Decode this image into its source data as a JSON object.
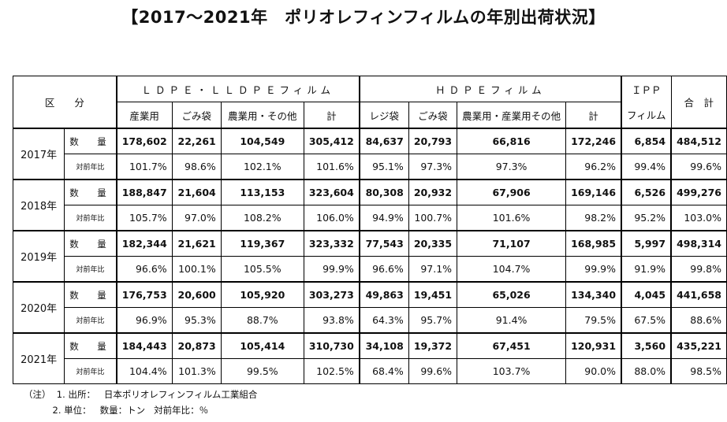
{
  "title": "【2017～2021年　ポリオレフィンフィルムの年別出荷状況】",
  "header": {
    "kubun": "区　　分",
    "ldpe": "ＬＤＰＥ・ＬＬＤＰＥフィルム",
    "hdpe": "ＨＤＰＥフィルム",
    "ipp_top": "ＩＰＰ",
    "ipp_bottom": "フィルム",
    "total": "合　計",
    "ldpe_cols": [
      "産業用",
      "ごみ袋",
      "農業用・その他",
      "計"
    ],
    "hdpe_cols": [
      "レジ袋",
      "ごみ袋",
      "農業用・産業用その他",
      "計"
    ]
  },
  "row_labels": {
    "qty": "数　量",
    "ratio": "対前年比"
  },
  "rows": [
    {
      "year": "2017年",
      "qty": [
        "178,602",
        "22,261",
        "104,549",
        "305,412",
        "84,637",
        "20,793",
        "66,816",
        "172,246",
        "6,854",
        "484,512"
      ],
      "ratio": [
        "101.7%",
        "98.6%",
        "102.1%",
        "101.6%",
        "95.1%",
        "97.3%",
        "97.3%",
        "96.2%",
        "99.4%",
        "99.6%"
      ]
    },
    {
      "year": "2018年",
      "qty": [
        "188,847",
        "21,604",
        "113,153",
        "323,604",
        "80,308",
        "20,932",
        "67,906",
        "169,146",
        "6,526",
        "499,276"
      ],
      "ratio": [
        "105.7%",
        "97.0%",
        "108.2%",
        "106.0%",
        "94.9%",
        "100.7%",
        "101.6%",
        "98.2%",
        "95.2%",
        "103.0%"
      ]
    },
    {
      "year": "2019年",
      "qty": [
        "182,344",
        "21,621",
        "119,367",
        "323,332",
        "77,543",
        "20,335",
        "71,107",
        "168,985",
        "5,997",
        "498,314"
      ],
      "ratio": [
        "96.6%",
        "100.1%",
        "105.5%",
        "99.9%",
        "96.6%",
        "97.1%",
        "104.7%",
        "99.9%",
        "91.9%",
        "99.8%"
      ]
    },
    {
      "year": "2020年",
      "qty": [
        "176,753",
        "20,600",
        "105,920",
        "303,273",
        "49,863",
        "19,451",
        "65,026",
        "134,340",
        "4,045",
        "441,658"
      ],
      "ratio": [
        "96.9%",
        "95.3%",
        "88.7%",
        "93.8%",
        "64.3%",
        "95.7%",
        "91.4%",
        "79.5%",
        "67.5%",
        "88.6%"
      ]
    },
    {
      "year": "2021年",
      "qty": [
        "184,443",
        "20,873",
        "105,414",
        "310,730",
        "34,108",
        "19,372",
        "67,451",
        "120,931",
        "3,560",
        "435,221"
      ],
      "ratio": [
        "104.4%",
        "101.3%",
        "99.5%",
        "102.5%",
        "68.4%",
        "99.6%",
        "103.7%",
        "90.0%",
        "88.0%",
        "98.5%"
      ]
    }
  ],
  "notes": [
    "（注）  1. 出所：   日本ポリオレフィンフィルム工業組合",
    "          2. 単位：   数量：トン   対前年比：％"
  ]
}
